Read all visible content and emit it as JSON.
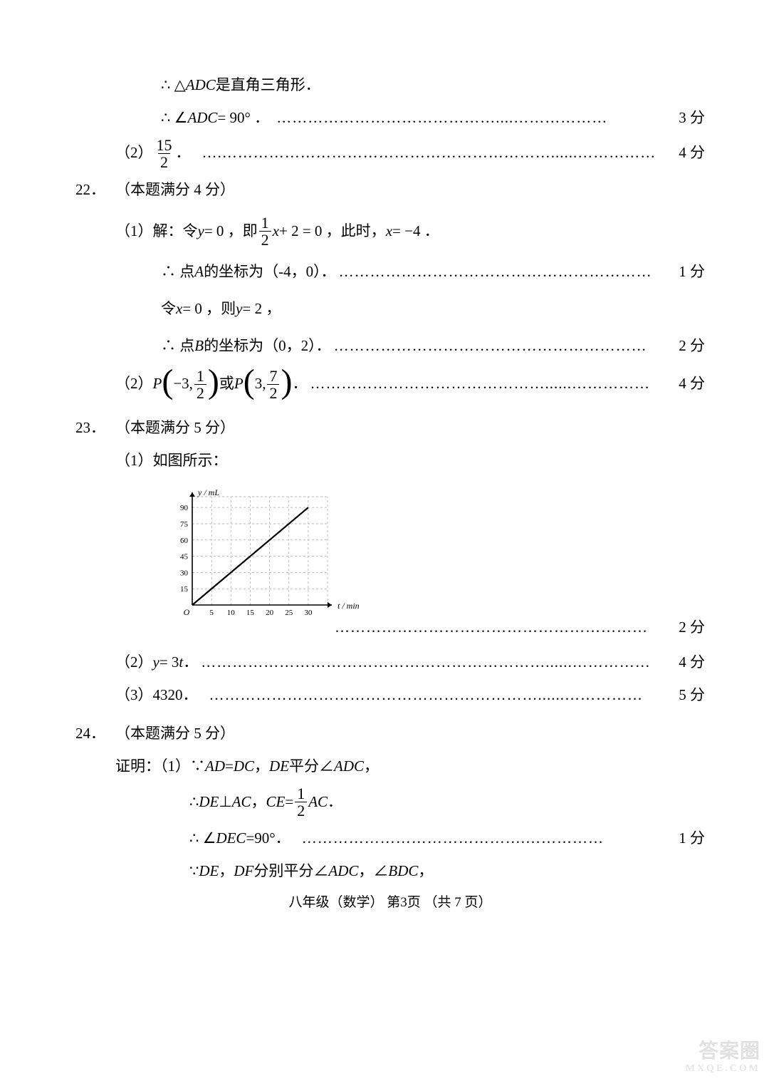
{
  "q21": {
    "line1_pre": "∴ △",
    "line1_var": "ADC",
    "line1_post": " 是直角三角形．",
    "line2_pre": "∴ ∠",
    "line2_var": "ADC",
    "line2_eq": " = 90° ．",
    "line2_score": "3 分",
    "part2_label": "（2）",
    "part2_frac_n": "15",
    "part2_frac_d": "2",
    "part2_post": "．",
    "part2_score": "4 分"
  },
  "q22": {
    "num": "22．",
    "head": "（本题满分 4 分）",
    "p1_label": "（1）解：令 ",
    "p1_eq1_a": "y",
    "p1_eq1_b": " = 0 ，即 ",
    "p1_frac_n": "1",
    "p1_frac_d": "2",
    "p1_eq2_a": "x",
    "p1_eq2_b": " + 2 = 0 ，此时， ",
    "p1_eq3_a": "x",
    "p1_eq3_b": " = −4 ．",
    "p1_l2_pre": "∴ 点 ",
    "p1_l2_var": "A",
    "p1_l2_post": " 的坐标为（-4，0）．",
    "p1_l2_score": "1 分",
    "p1_l3_pre": "令 ",
    "p1_l3_var": "x",
    "p1_l3_mid": " = 0 ，则 ",
    "p1_l3_var2": "y",
    "p1_l3_post": " = 2 ，",
    "p1_l4_pre": "∴ 点 ",
    "p1_l4_var": "B",
    "p1_l4_post": " 的坐标为（0，2）．",
    "p1_l4_score": "2 分",
    "p2_label": "（2） ",
    "p2_P1": "P",
    "p2_P1_x": "−3,",
    "p2_P1_yn": "1",
    "p2_P1_yd": "2",
    "p2_or": " 或 ",
    "p2_P2": "P",
    "p2_P2_x": "3,",
    "p2_P2_yn": "7",
    "p2_P2_yd": "2",
    "p2_post": " ．",
    "p2_score": "4 分"
  },
  "q23": {
    "num": "23．",
    "head": "（本题满分 5 分）",
    "p1_label": "（1）如图所示：",
    "chart": {
      "type": "line",
      "background_color": "#ffffff",
      "grid_color": "#b8b8b8",
      "axis_color": "#000000",
      "line_color": "#000000",
      "line_width": 2.2,
      "x_label": "t / min",
      "y_label": "y / mL",
      "x_ticks": [
        5,
        10,
        15,
        20,
        25,
        30
      ],
      "y_ticks": [
        15,
        30,
        45,
        60,
        75,
        90
      ],
      "xlim": [
        0,
        35
      ],
      "ylim": [
        0,
        100
      ],
      "origin_label": "O",
      "data_x": [
        0,
        30
      ],
      "data_y": [
        0,
        90
      ],
      "label_fontsize": 12,
      "tick_fontsize": 11
    },
    "p1_score": "2 分",
    "p2_label": "（2） ",
    "p2_var": "y",
    "p2_eq": " = 3",
    "p2_var2": "t",
    "p2_post": " ．",
    "p2_score": "4 分",
    "p3_label": "（3）4320．",
    "p3_score": "5 分"
  },
  "q24": {
    "num": "24．",
    "head": "（本题满分 5 分）",
    "proof_label": "证明：（1）∵ ",
    "l1_a": "AD",
    "l1_eq": "=",
    "l1_b": "DC",
    "l1_c": "，",
    "l1_d": "DE",
    "l1_e": " 平分∠",
    "l1_f": "ADC",
    "l1_g": "，",
    "l2_pre": "∴ ",
    "l2_a": "DE",
    "l2_perp": " ⊥ ",
    "l2_b": "AC",
    "l2_c": " ， ",
    "l2_d": "CE",
    "l2_eq": " = ",
    "l2_frac_n": "1",
    "l2_frac_d": "2",
    "l2_e": "AC",
    "l2_post": " ．",
    "l3_pre": "∴ ∠",
    "l3_a": "DEC",
    "l3_post": " =90°．",
    "l3_score": "1 分",
    "l4_pre": "∵ ",
    "l4_a": "DE",
    "l4_b": "，",
    "l4_c": "DF",
    "l4_d": " 分别平分∠",
    "l4_e": "ADC",
    "l4_f": "，∠",
    "l4_g": "BDC",
    "l4_h": "，"
  },
  "footer": "八年级（数学）   第3页 （共 7 页）",
  "watermark_main": "答案圈",
  "watermark_sub": "MXQE.COM"
}
